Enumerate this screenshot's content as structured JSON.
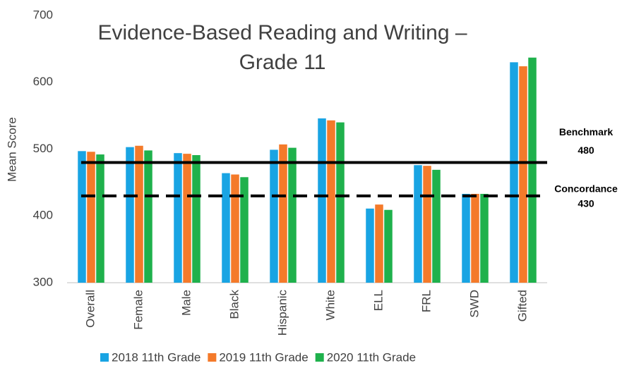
{
  "chart_data": {
    "type": "bar",
    "title": [
      "Evidence-Based Reading and Writing –",
      "Grade 11"
    ],
    "y_label": "Mean Score",
    "categories": [
      "Overall",
      "Female",
      "Male",
      "Black",
      "Hispanic",
      "White",
      "ELL",
      "FRL",
      "SWD",
      "Gifted"
    ],
    "series": [
      {
        "name": "2018 11th Grade",
        "color": "#19a4e3",
        "values": [
          497,
          503,
          494,
          464,
          499,
          546,
          411,
          476,
          433,
          630
        ]
      },
      {
        "name": "2019 11th Grade",
        "color": "#f47a2a",
        "values": [
          496,
          505,
          493,
          462,
          507,
          543,
          417,
          475,
          433,
          624
        ]
      },
      {
        "name": "2020 11th Grade",
        "color": "#1fb14c",
        "values": [
          492,
          498,
          491,
          458,
          502,
          540,
          409,
          469,
          433,
          637
        ]
      }
    ],
    "reference_lines": [
      {
        "label": "Benchmark",
        "value": 480,
        "style": "solid"
      },
      {
        "label": "Concordance",
        "value": 430,
        "style": "dashed"
      }
    ],
    "ylim": [
      300,
      700
    ],
    "yticks": [
      300,
      400,
      500,
      600,
      700
    ],
    "grid": false,
    "legend": "bottom"
  }
}
